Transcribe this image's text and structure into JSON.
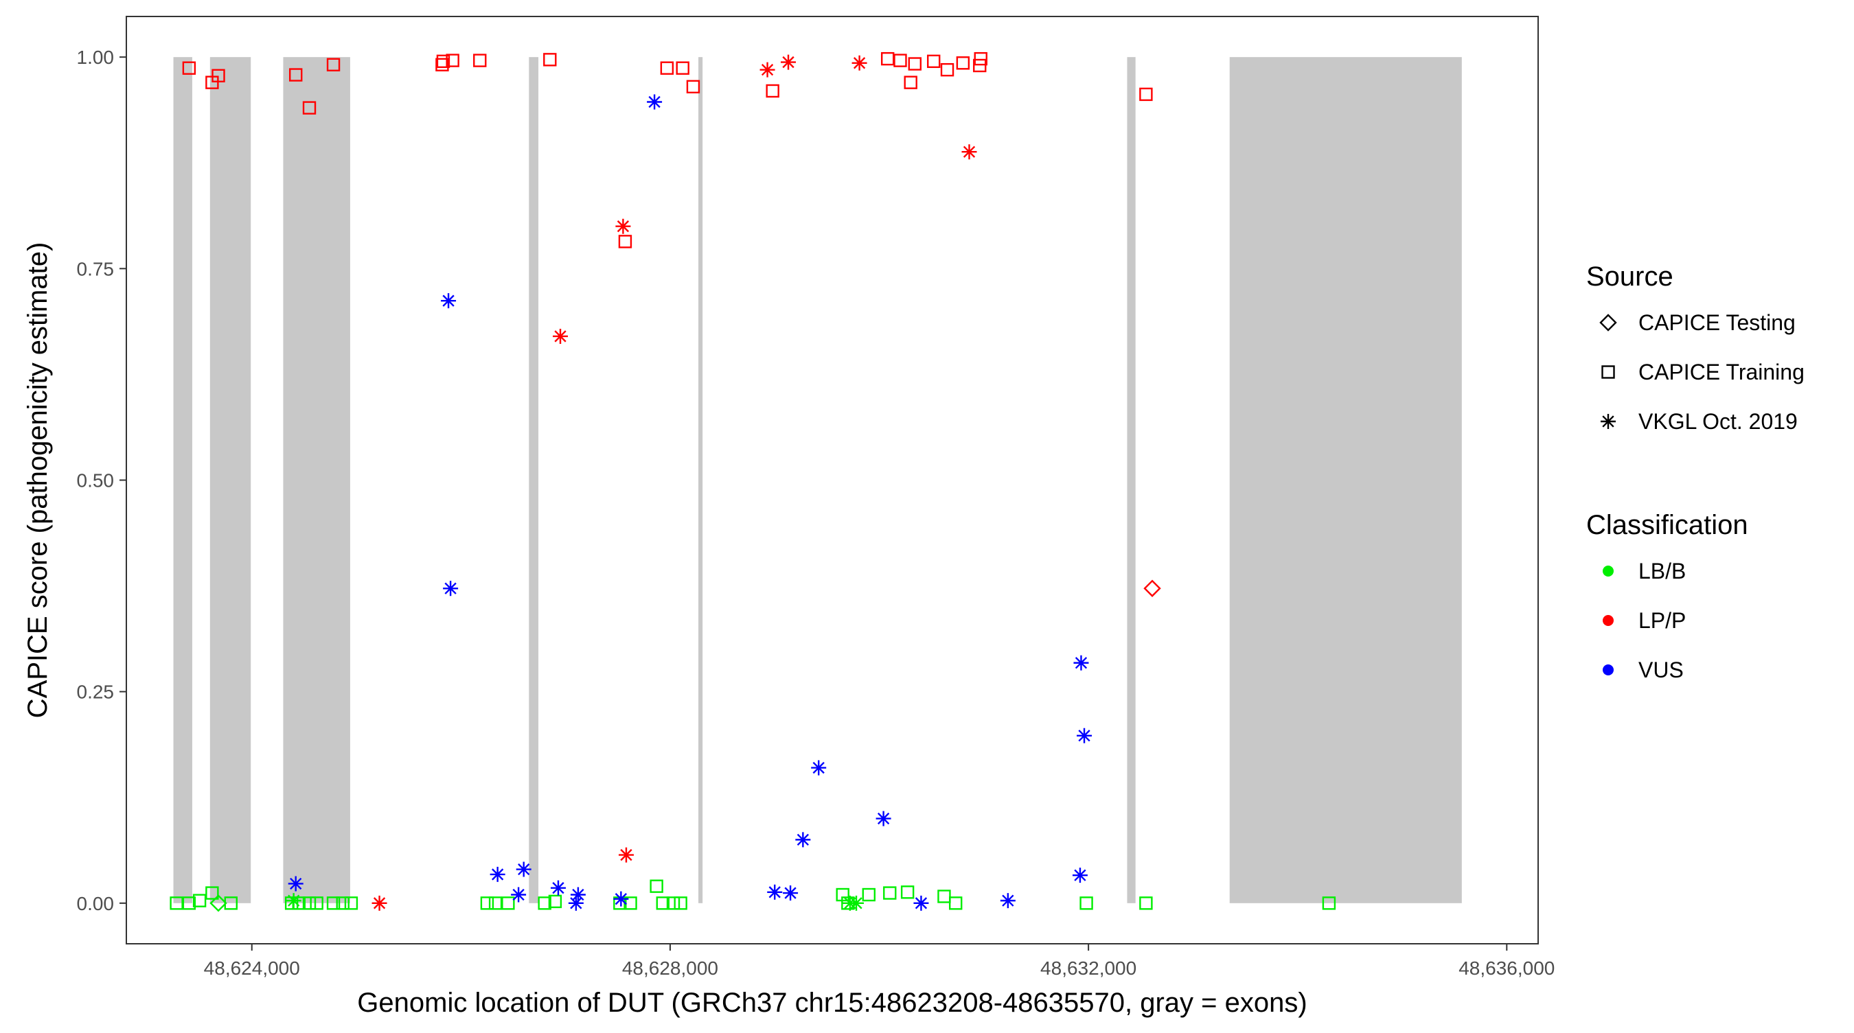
{
  "chart_data": {
    "type": "scatter",
    "xlabel": "Genomic location of DUT (GRCh37 chr15:48623208-48635570, gray = exons)",
    "ylabel": "CAPICE score (pathogenicity estimate)",
    "xlim": [
      48622800,
      48636300
    ],
    "ylim": [
      -0.048,
      1.048
    ],
    "x_ticks": [
      {
        "value": 48624000,
        "label": "48,624,000"
      },
      {
        "value": 48628000,
        "label": "48,628,000"
      },
      {
        "value": 48632000,
        "label": "48,632,000"
      },
      {
        "value": 48636000,
        "label": "48,636,000"
      }
    ],
    "y_ticks": [
      {
        "value": 0,
        "label": "0.00"
      },
      {
        "value": 0.25,
        "label": "0.25"
      },
      {
        "value": 0.5,
        "label": "0.50"
      },
      {
        "value": 0.75,
        "label": "0.75"
      },
      {
        "value": 1,
        "label": "1.00"
      }
    ],
    "grid": false,
    "exons": [
      [
        48623250,
        48623430
      ],
      [
        48623600,
        48623990
      ],
      [
        48624300,
        48624940
      ],
      [
        48626650,
        48626740
      ],
      [
        48628270,
        48628310
      ],
      [
        48632370,
        48632450
      ],
      [
        48633350,
        48635570
      ]
    ],
    "exon_color": "#c8c8c8",
    "legend": {
      "position": "right",
      "source_title": "Source",
      "source_items": [
        {
          "name": "CAPICE Testing",
          "shape": "diamond"
        },
        {
          "name": "CAPICE Training",
          "shape": "square"
        },
        {
          "name": "VKGL Oct. 2019",
          "shape": "asterisk"
        }
      ],
      "class_title": "Classification",
      "class_items": [
        {
          "name": "LB/B",
          "color": "#00ee00"
        },
        {
          "name": "LP/P",
          "color": "#ff0000"
        },
        {
          "name": "VUS",
          "color": "#0000ff"
        }
      ]
    },
    "series": [
      {
        "source": "CAPICE Training",
        "classification": "LP/P",
        "points": [
          [
            48623400,
            0.987
          ],
          [
            48623620,
            0.97
          ],
          [
            48623680,
            0.978
          ],
          [
            48624420,
            0.979
          ],
          [
            48624550,
            0.94
          ],
          [
            48624780,
            0.991
          ],
          [
            48625820,
            0.991
          ],
          [
            48625830,
            0.995
          ],
          [
            48625920,
            0.996
          ],
          [
            48626180,
            0.996
          ],
          [
            48626850,
            0.997
          ],
          [
            48627570,
            0.782
          ],
          [
            48627970,
            0.987
          ],
          [
            48628120,
            0.987
          ],
          [
            48628220,
            0.965
          ],
          [
            48628980,
            0.96
          ],
          [
            48630080,
            0.998
          ],
          [
            48630200,
            0.996
          ],
          [
            48630300,
            0.97
          ],
          [
            48630340,
            0.992
          ],
          [
            48630520,
            0.995
          ],
          [
            48630650,
            0.985
          ],
          [
            48630800,
            0.993
          ],
          [
            48630960,
            0.99
          ],
          [
            48630970,
            0.998
          ],
          [
            48632550,
            0.956
          ]
        ]
      },
      {
        "source": "CAPICE Training",
        "classification": "LB/B",
        "points": [
          [
            48623280,
            0
          ],
          [
            48623400,
            0
          ],
          [
            48623500,
            0.003
          ],
          [
            48623620,
            0.012
          ],
          [
            48623800,
            0
          ],
          [
            48624380,
            0
          ],
          [
            48624450,
            0
          ],
          [
            48624550,
            0
          ],
          [
            48624620,
            0
          ],
          [
            48624780,
            0
          ],
          [
            48624870,
            0
          ],
          [
            48624950,
            0
          ],
          [
            48626250,
            0
          ],
          [
            48626330,
            0
          ],
          [
            48626450,
            0
          ],
          [
            48626800,
            0
          ],
          [
            48626900,
            0.002
          ],
          [
            48627520,
            0
          ],
          [
            48627620,
            0
          ],
          [
            48627870,
            0.02
          ],
          [
            48627930,
            0
          ],
          [
            48628030,
            0
          ],
          [
            48628100,
            0
          ],
          [
            48629650,
            0.01
          ],
          [
            48629700,
            0
          ],
          [
            48629900,
            0.01
          ],
          [
            48630100,
            0.012
          ],
          [
            48630270,
            0.013
          ],
          [
            48630620,
            0.008
          ],
          [
            48630730,
            0
          ],
          [
            48631980,
            0
          ],
          [
            48632550,
            0
          ],
          [
            48634300,
            0
          ]
        ]
      },
      {
        "source": "CAPICE Testing",
        "classification": "LB/B",
        "points": [
          [
            48623680,
            0
          ]
        ]
      },
      {
        "source": "CAPICE Testing",
        "classification": "LP/P",
        "points": [
          [
            48632610,
            0.372
          ]
        ]
      },
      {
        "source": "VKGL Oct. 2019",
        "classification": "LP/P",
        "points": [
          [
            48625220,
            0
          ],
          [
            48626950,
            0.67
          ],
          [
            48627550,
            0.8
          ],
          [
            48627580,
            0.057
          ],
          [
            48628930,
            0.985
          ],
          [
            48629130,
            0.994
          ],
          [
            48629810,
            0.993
          ],
          [
            48630860,
            0.888
          ]
        ]
      },
      {
        "source": "VKGL Oct. 2019",
        "classification": "VUS",
        "points": [
          [
            48624420,
            0.023
          ],
          [
            48625880,
            0.712
          ],
          [
            48625900,
            0.372
          ],
          [
            48626350,
            0.034
          ],
          [
            48626550,
            0.01
          ],
          [
            48626600,
            0.04
          ],
          [
            48626930,
            0.018
          ],
          [
            48627100,
            0
          ],
          [
            48627120,
            0.01
          ],
          [
            48627530,
            0.005
          ],
          [
            48627850,
            0.947
          ],
          [
            48629000,
            0.013
          ],
          [
            48629150,
            0.012
          ],
          [
            48629270,
            0.075
          ],
          [
            48629420,
            0.16
          ],
          [
            48630040,
            0.1
          ],
          [
            48630400,
            0
          ],
          [
            48631230,
            0.003
          ],
          [
            48631920,
            0.033
          ],
          [
            48631930,
            0.284
          ],
          [
            48631960,
            0.198
          ]
        ]
      },
      {
        "source": "VKGL Oct. 2019",
        "classification": "LB/B",
        "points": [
          [
            48624400,
            0.003
          ],
          [
            48629720,
            0
          ],
          [
            48629780,
            0
          ]
        ]
      }
    ]
  }
}
